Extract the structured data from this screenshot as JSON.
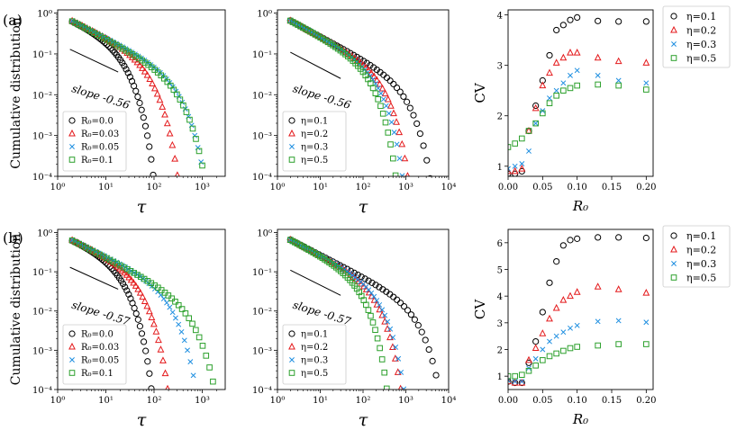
{
  "figure": {
    "rows": [
      {
        "label": "(a)"
      },
      {
        "label": "(b)"
      }
    ]
  },
  "colors": {
    "black": "#000000",
    "red": "#e41a1c",
    "blue": "#1f8fe0",
    "green": "#2ca02c"
  },
  "chart_data": [
    {
      "id": "a1",
      "type": "scatter",
      "row": "(a)",
      "xscale": "log",
      "yscale": "log",
      "xlabel": "τ",
      "ylabel": "Cumulative distribution",
      "xlim": [
        1,
        3000
      ],
      "ylim": [
        0.0001,
        1.2
      ],
      "xticks": [
        {
          "v": 1,
          "label": "10⁰"
        },
        {
          "v": 10,
          "label": "10¹"
        },
        {
          "v": 100,
          "label": "10²"
        },
        {
          "v": 1000,
          "label": "10³"
        }
      ],
      "yticks": [
        {
          "v": 1,
          "label": "10⁰"
        },
        {
          "v": 0.1,
          "label": "10⁻¹"
        },
        {
          "v": 0.01,
          "label": "10⁻²"
        },
        {
          "v": 0.001,
          "label": "10⁻³"
        },
        {
          "v": 0.0001,
          "label": "10⁻⁴"
        }
      ],
      "legend": "lower-left",
      "annotation": {
        "text": "slope -0.56",
        "line": [
          [
            1.8,
            0.13
          ],
          [
            18,
            0.036
          ]
        ],
        "text_at": [
          1.9,
          0.012
        ]
      },
      "series": [
        {
          "name": "R₀=0.0",
          "marker": "circle",
          "color": "black",
          "tau_max": 110,
          "spread": 0.95
        },
        {
          "name": "R₀=0.03",
          "marker": "triangle",
          "color": "red",
          "tau_max": 380,
          "spread": 1.0
        },
        {
          "name": "R₀=0.05",
          "marker": "x",
          "color": "blue",
          "tau_max": 1500,
          "spread": 1.05
        },
        {
          "name": "R₀=0.1",
          "marker": "square",
          "color": "green",
          "tau_max": 1600,
          "spread": 1.1
        }
      ],
      "legend_labels": [
        "R₀=0.0",
        "R₀=0.03",
        "R₀=0.05",
        "R₀=0.1"
      ]
    },
    {
      "id": "a2",
      "type": "scatter",
      "row": "(a)",
      "xscale": "log",
      "yscale": "log",
      "xlabel": "τ",
      "ylabel": "",
      "xlim": [
        1,
        10000
      ],
      "ylim": [
        0.0001,
        1.2
      ],
      "xticks": [
        {
          "v": 1,
          "label": "10⁰"
        },
        {
          "v": 10,
          "label": "10¹"
        },
        {
          "v": 100,
          "label": "10²"
        },
        {
          "v": 1000,
          "label": "10³"
        },
        {
          "v": 10000,
          "label": "10⁴"
        }
      ],
      "yticks": [
        {
          "v": 1,
          "label": "10⁰"
        },
        {
          "v": 0.1,
          "label": "10⁻¹"
        },
        {
          "v": 0.01,
          "label": "10⁻²"
        },
        {
          "v": 0.001,
          "label": "10⁻³"
        },
        {
          "v": 0.0001,
          "label": "10⁻⁴"
        }
      ],
      "legend": "lower-left",
      "annotation": {
        "text": "slope -0.56",
        "line": [
          [
            2,
            0.11
          ],
          [
            30,
            0.025
          ]
        ],
        "text_at": [
          2.2,
          0.012
        ]
      },
      "series": [
        {
          "name": "η=0.1",
          "marker": "circle",
          "color": "black",
          "tau_max": 5500,
          "spread": 1.0
        },
        {
          "name": "η=0.2",
          "marker": "triangle",
          "color": "red",
          "tau_max": 1500,
          "spread": 1.0
        },
        {
          "name": "η=0.3",
          "marker": "x",
          "color": "blue",
          "tau_max": 1100,
          "spread": 1.0
        },
        {
          "name": "η=0.5",
          "marker": "square",
          "color": "green",
          "tau_max": 750,
          "spread": 1.0
        }
      ],
      "legend_labels": [
        "η=0.1",
        "η=0.2",
        "η=0.3",
        "η=0.5"
      ]
    },
    {
      "id": "a3",
      "type": "scatter",
      "row": "(a)",
      "xscale": "linear",
      "yscale": "linear",
      "xlabel": "R₀",
      "ylabel": "CV",
      "xlim": [
        0,
        0.21
      ],
      "ylim": [
        0.8,
        4.1
      ],
      "xticks": [
        {
          "v": 0,
          "label": "0.00"
        },
        {
          "v": 0.05,
          "label": "0.05"
        },
        {
          "v": 0.1,
          "label": "0.10"
        },
        {
          "v": 0.15,
          "label": "0.15"
        },
        {
          "v": 0.2,
          "label": "0.20"
        }
      ],
      "yticks": [
        {
          "v": 1,
          "label": "1"
        },
        {
          "v": 2,
          "label": "2"
        },
        {
          "v": 3,
          "label": "3"
        },
        {
          "v": 4,
          "label": "4"
        }
      ],
      "legend": "outside-right",
      "x": [
        0.0,
        0.01,
        0.02,
        0.03,
        0.04,
        0.05,
        0.06,
        0.07,
        0.08,
        0.09,
        0.1,
        0.13,
        0.16,
        0.2
      ],
      "series": [
        {
          "name": "η=0.1",
          "marker": "circle",
          "color": "black",
          "values": [
            0.85,
            0.85,
            0.9,
            1.7,
            2.2,
            2.7,
            3.2,
            3.7,
            3.8,
            3.9,
            3.95,
            3.88,
            3.87,
            3.87
          ]
        },
        {
          "name": "η=0.2",
          "marker": "triangle",
          "color": "red",
          "values": [
            0.9,
            0.9,
            0.95,
            1.7,
            2.15,
            2.6,
            2.85,
            3.05,
            3.15,
            3.25,
            3.25,
            3.15,
            3.08,
            3.05
          ]
        },
        {
          "name": "η=0.3",
          "marker": "x",
          "color": "blue",
          "values": [
            0.95,
            1.0,
            1.05,
            1.3,
            1.85,
            2.1,
            2.35,
            2.5,
            2.65,
            2.8,
            2.9,
            2.8,
            2.7,
            2.65
          ]
        },
        {
          "name": "η=0.5",
          "marker": "square",
          "color": "green",
          "values": [
            1.38,
            1.45,
            1.55,
            1.7,
            1.85,
            2.05,
            2.25,
            2.4,
            2.5,
            2.55,
            2.6,
            2.62,
            2.6,
            2.52
          ]
        }
      ],
      "legend_labels": [
        "η=0.1",
        "η=0.2",
        "η=0.3",
        "η=0.5"
      ]
    },
    {
      "id": "b1",
      "type": "scatter",
      "row": "(b)",
      "xscale": "log",
      "yscale": "log",
      "xlabel": "τ",
      "ylabel": "Cumulative distribution",
      "xlim": [
        1,
        3000
      ],
      "ylim": [
        0.0001,
        1.2
      ],
      "xticks": [
        {
          "v": 1,
          "label": "10⁰"
        },
        {
          "v": 10,
          "label": "10¹"
        },
        {
          "v": 100,
          "label": "10²"
        },
        {
          "v": 1000,
          "label": "10³"
        }
      ],
      "yticks": [
        {
          "v": 1,
          "label": "10⁰"
        },
        {
          "v": 0.1,
          "label": "10⁻¹"
        },
        {
          "v": 0.01,
          "label": "10⁻²"
        },
        {
          "v": 0.001,
          "label": "10⁻³"
        },
        {
          "v": 0.0001,
          "label": "10⁻⁴"
        }
      ],
      "legend": "lower-left",
      "annotation": {
        "text": "slope -0.57",
        "line": [
          [
            1.8,
            0.13
          ],
          [
            18,
            0.036
          ]
        ],
        "text_at": [
          1.9,
          0.012
        ]
      },
      "series": [
        {
          "name": "R₀=0.0",
          "marker": "circle",
          "color": "black",
          "tau_max": 100,
          "spread": 0.95
        },
        {
          "name": "R₀=0.03",
          "marker": "triangle",
          "color": "red",
          "tau_max": 230,
          "spread": 1.0
        },
        {
          "name": "R₀=0.05",
          "marker": "x",
          "color": "blue",
          "tau_max": 1000,
          "spread": 1.05
        },
        {
          "name": "R₀=0.1",
          "marker": "square",
          "color": "green",
          "tau_max": 2800,
          "spread": 1.12
        }
      ],
      "legend_labels": [
        "R₀=0.0",
        "R₀=0.03",
        "R₀=0.05",
        "R₀=0.1"
      ]
    },
    {
      "id": "b2",
      "type": "scatter",
      "row": "(b)",
      "xscale": "log",
      "yscale": "log",
      "xlabel": "τ",
      "ylabel": "",
      "xlim": [
        1,
        10000
      ],
      "ylim": [
        0.0001,
        1.2
      ],
      "xticks": [
        {
          "v": 1,
          "label": "10⁰"
        },
        {
          "v": 10,
          "label": "10¹"
        },
        {
          "v": 100,
          "label": "10²"
        },
        {
          "v": 1000,
          "label": "10³"
        },
        {
          "v": 10000,
          "label": "10⁴"
        }
      ],
      "yticks": [
        {
          "v": 1,
          "label": "10⁰"
        },
        {
          "v": 0.1,
          "label": "10⁻¹"
        },
        {
          "v": 0.01,
          "label": "10⁻²"
        },
        {
          "v": 0.001,
          "label": "10⁻³"
        },
        {
          "v": 0.0001,
          "label": "10⁻⁴"
        }
      ],
      "legend": "lower-left",
      "annotation": {
        "text": "slope -0.57",
        "line": [
          [
            2,
            0.11
          ],
          [
            30,
            0.025
          ]
        ],
        "text_at": [
          2.2,
          0.012
        ]
      },
      "series": [
        {
          "name": "η=0.1",
          "marker": "circle",
          "color": "black",
          "tau_max": 9500,
          "spread": 1.0
        },
        {
          "name": "η=0.2",
          "marker": "triangle",
          "color": "red",
          "tau_max": 1000,
          "spread": 1.0
        },
        {
          "name": "η=0.3",
          "marker": "x",
          "color": "blue",
          "tau_max": 1200,
          "spread": 1.0
        },
        {
          "name": "η=0.5",
          "marker": "square",
          "color": "green",
          "tau_max": 450,
          "spread": 1.0
        }
      ],
      "legend_labels": [
        "η=0.1",
        "η=0.2",
        "η=0.3",
        "η=0.5"
      ]
    },
    {
      "id": "b3",
      "type": "scatter",
      "row": "(b)",
      "xscale": "linear",
      "yscale": "linear",
      "xlabel": "R₀",
      "ylabel": "CV",
      "xlim": [
        0,
        0.21
      ],
      "ylim": [
        0.5,
        6.5
      ],
      "xticks": [
        {
          "v": 0,
          "label": "0.00"
        },
        {
          "v": 0.05,
          "label": "0.05"
        },
        {
          "v": 0.1,
          "label": "0.10"
        },
        {
          "v": 0.15,
          "label": "0.15"
        },
        {
          "v": 0.2,
          "label": "0.20"
        }
      ],
      "yticks": [
        {
          "v": 1,
          "label": "1"
        },
        {
          "v": 2,
          "label": "2"
        },
        {
          "v": 3,
          "label": "3"
        },
        {
          "v": 4,
          "label": "4"
        },
        {
          "v": 5,
          "label": "5"
        },
        {
          "v": 6,
          "label": "6"
        }
      ],
      "legend": "outside-right",
      "x": [
        0.0,
        0.01,
        0.02,
        0.03,
        0.04,
        0.05,
        0.06,
        0.07,
        0.08,
        0.09,
        0.1,
        0.13,
        0.16,
        0.2
      ],
      "series": [
        {
          "name": "η=0.1",
          "marker": "circle",
          "color": "black",
          "values": [
            0.8,
            0.75,
            0.75,
            1.5,
            2.3,
            3.4,
            4.5,
            5.3,
            5.9,
            6.1,
            6.15,
            6.2,
            6.2,
            6.18
          ]
        },
        {
          "name": "η=0.2",
          "marker": "triangle",
          "color": "red",
          "values": [
            0.8,
            0.75,
            0.75,
            1.6,
            2.05,
            2.6,
            3.15,
            3.55,
            3.85,
            4.0,
            4.15,
            4.35,
            4.25,
            4.12
          ]
        },
        {
          "name": "η=0.3",
          "marker": "x",
          "color": "blue",
          "values": [
            0.85,
            0.8,
            0.8,
            1.3,
            1.65,
            2.0,
            2.3,
            2.5,
            2.65,
            2.8,
            2.9,
            3.05,
            3.08,
            3.02
          ]
        },
        {
          "name": "η=0.5",
          "marker": "square",
          "color": "green",
          "values": [
            1.0,
            1.0,
            1.05,
            1.2,
            1.4,
            1.6,
            1.75,
            1.85,
            1.95,
            2.05,
            2.1,
            2.15,
            2.2,
            2.2
          ]
        }
      ],
      "legend_labels": [
        "η=0.1",
        "η=0.2",
        "η=0.3",
        "η=0.5"
      ]
    }
  ]
}
